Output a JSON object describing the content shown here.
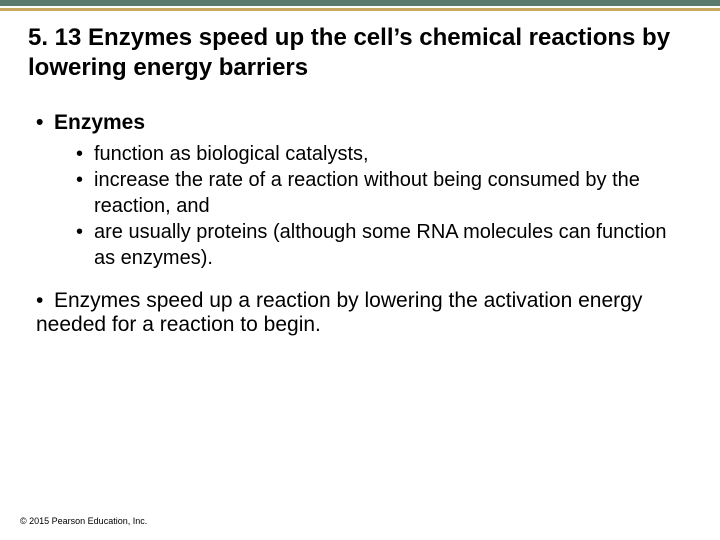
{
  "colors": {
    "top_bar": "#5b7a6e",
    "accent_line": "#c9a960",
    "background": "#ffffff",
    "text": "#000000"
  },
  "typography": {
    "title_fontsize": 24,
    "bullet_l1_fontsize": 21,
    "bullet_l2_fontsize": 20,
    "copyright_fontsize": 9,
    "font_family": "Arial"
  },
  "title": "5. 13 Enzymes speed up the cell’s chemical reactions by lowering energy barriers",
  "bullets": {
    "l1_enzymes": "Enzymes",
    "l2_catalysts": "function as biological catalysts,",
    "l2_increase": "increase the rate of a reaction without being consumed by the reaction, and",
    "l2_proteins": "are usually proteins (although some RNA molecules can function as enzymes).",
    "l1_speedup": "Enzymes speed up a reaction by lowering the activation energy needed for a reaction to begin."
  },
  "copyright": "© 2015 Pearson Education, Inc."
}
